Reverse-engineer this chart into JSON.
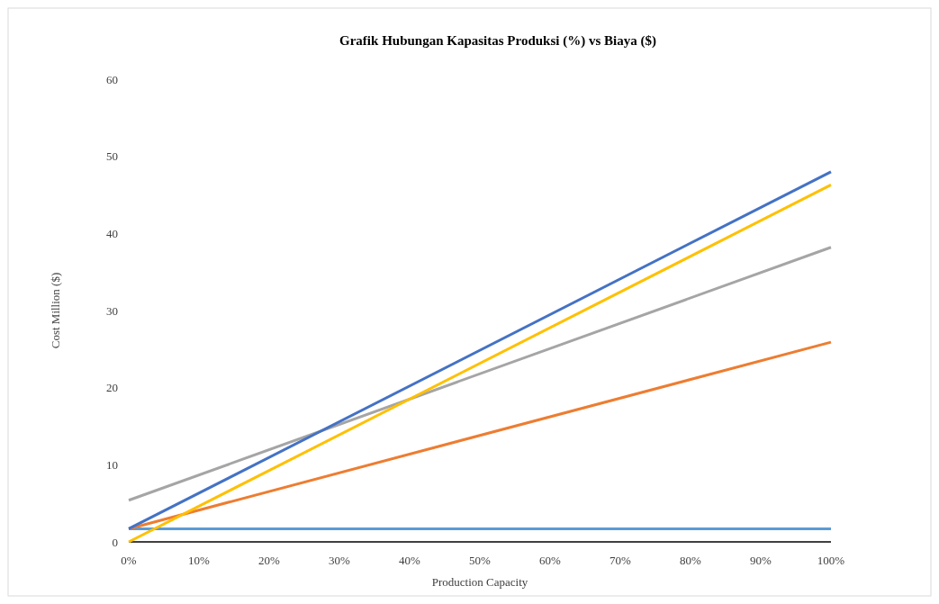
{
  "chart_data": {
    "type": "line",
    "title": "Grafik Hubungan Kapasitas Produksi (%) vs Biaya ($)",
    "xlabel": "Production Capacity",
    "ylabel": "Cost Million  ($)",
    "x": [
      0,
      100
    ],
    "xlim": [
      0,
      100
    ],
    "xticks": [
      {
        "value": 0,
        "label": "0%"
      },
      {
        "value": 10,
        "label": "10%"
      },
      {
        "value": 20,
        "label": "20%"
      },
      {
        "value": 30,
        "label": "30%"
      },
      {
        "value": 40,
        "label": "40%"
      },
      {
        "value": 50,
        "label": "50%"
      },
      {
        "value": 60,
        "label": "60%"
      },
      {
        "value": 70,
        "label": "70%"
      },
      {
        "value": 80,
        "label": "80%"
      },
      {
        "value": 90,
        "label": "90%"
      },
      {
        "value": 100,
        "label": "100%"
      }
    ],
    "ylim": [
      0,
      60
    ],
    "yticks": [
      0,
      10,
      20,
      30,
      40,
      50,
      60
    ],
    "grid": false,
    "marker": "none",
    "line_style": "solid",
    "series": [
      {
        "color": "#5b9bd5",
        "values": [
          1.7,
          1.7
        ]
      },
      {
        "color": "#ed7d31",
        "values": [
          1.7,
          25.9
        ]
      },
      {
        "color": "#a5a5a5",
        "values": [
          5.4,
          38.2
        ]
      },
      {
        "color": "#ffc000",
        "values": [
          0,
          46.3
        ]
      },
      {
        "color": "#4472c4",
        "values": [
          1.7,
          48
        ]
      }
    ]
  }
}
